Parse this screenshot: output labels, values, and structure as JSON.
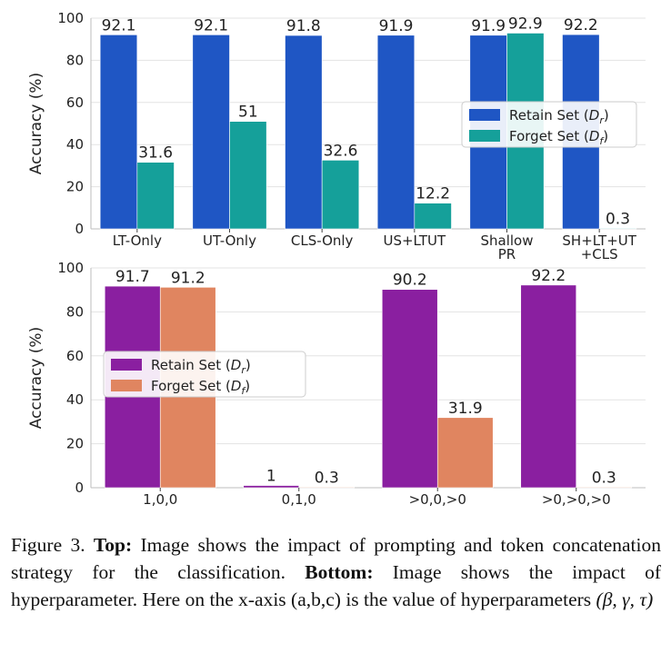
{
  "chart_data": [
    {
      "type": "bar",
      "ylabel": "Accuracy (%)",
      "ylim": [
        0,
        100
      ],
      "yticks": [
        "0",
        "20",
        "40",
        "60",
        "80",
        "100"
      ],
      "categories": [
        [
          "LT-Only"
        ],
        [
          "UT-Only"
        ],
        [
          "CLS-Only"
        ],
        [
          "US+LTUT"
        ],
        [
          "Shallow",
          "PR"
        ],
        [
          "SH+LT+UT",
          "+CLS"
        ]
      ],
      "series": [
        {
          "name": "Retain Set (D_r)",
          "legend_text": "Retain Set (",
          "legend_sub": "r",
          "color": "#1f56c4",
          "values": [
            92.1,
            92.1,
            91.8,
            91.9,
            91.9,
            92.2
          ],
          "labels": [
            "92.1",
            "92.1",
            "91.8",
            "91.9",
            "91.9",
            "92.2"
          ]
        },
        {
          "name": "Forget Set (D_f)",
          "legend_text": "Forget Set (",
          "legend_sub": "f",
          "color": "#15a09a",
          "values": [
            31.6,
            51,
            32.6,
            12.2,
            92.9,
            0.3
          ],
          "labels": [
            "31.6",
            "51",
            "32.6",
            "12.2",
            "92.9",
            "0.3"
          ]
        }
      ],
      "legend": "center-right",
      "grid": true
    },
    {
      "type": "bar",
      "ylabel": "Accuracy (%)",
      "ylim": [
        0,
        100
      ],
      "yticks": [
        "0",
        "20",
        "40",
        "60",
        "80",
        "100"
      ],
      "categories": [
        [
          "1,0,0"
        ],
        [
          "0,1,0"
        ],
        [
          ">0,0,>0"
        ],
        [
          ">0,>0,>0"
        ]
      ],
      "series": [
        {
          "name": "Retain Set (D_r)",
          "legend_text": "Retain Set (",
          "legend_sub": "r",
          "color": "#8a1fa0",
          "values": [
            91.7,
            1,
            90.2,
            92.2
          ],
          "labels": [
            "91.7",
            "1",
            "90.2",
            "92.2"
          ]
        },
        {
          "name": "Forget Set (D_f)",
          "legend_text": "Forget Set (",
          "legend_sub": "f",
          "color": "#e08560",
          "values": [
            91.2,
            0.3,
            31.9,
            0.3
          ],
          "labels": [
            "91.2",
            "0.3",
            "31.9",
            "0.3"
          ]
        }
      ],
      "legend": "center-left",
      "grid": true
    }
  ],
  "caption": {
    "lead": "Figure 3.",
    "top_label": "Top:",
    "top_text": "Image shows the impact of prompting and token concatenation strategy for the classification.",
    "bottom_label": "Bottom:",
    "bottom_text": "Image shows the impact of hyperparameter. Here on the x-axis (a,b,c) is the value of hyperparameters",
    "params": "(β, γ, τ)"
  }
}
